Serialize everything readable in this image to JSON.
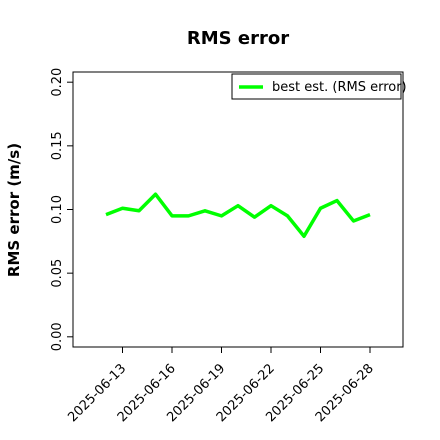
{
  "chart_data": {
    "type": "line",
    "title": "RMS error",
    "y_label": "RMS error (m/s)",
    "x": [
      "2025-06-12",
      "2025-06-13",
      "2025-06-14",
      "2025-06-15",
      "2025-06-16",
      "2025-06-17",
      "2025-06-18",
      "2025-06-19",
      "2025-06-20",
      "2025-06-21",
      "2025-06-22",
      "2025-06-23",
      "2025-06-24",
      "2025-06-25",
      "2025-06-26",
      "2025-06-27",
      "2025-06-28"
    ],
    "series": [
      {
        "name": "best est. (RMS error)",
        "color": "#00ff00",
        "values": [
          0.096,
          0.101,
          0.099,
          0.112,
          0.095,
          0.095,
          0.099,
          0.095,
          0.103,
          0.094,
          0.103,
          0.095,
          0.079,
          0.101,
          0.107,
          0.091,
          0.096
        ]
      }
    ],
    "xlim": [
      "2025-06-10",
      "2025-06-30"
    ],
    "xticks": [
      "2025-06-13",
      "2025-06-16",
      "2025-06-19",
      "2025-06-22",
      "2025-06-25",
      "2025-06-28"
    ],
    "highlight_tick": "2025-06-19",
    "highlight_color": "#228b22",
    "ylim": [
      -0.008,
      0.208
    ],
    "yticks": [
      {
        "value": 0,
        "label": "0.00"
      },
      {
        "value": 0.05,
        "label": "0.05"
      },
      {
        "value": 0.1,
        "label": "0.10"
      },
      {
        "value": 0.15,
        "label": "0.15"
      },
      {
        "value": 0.2,
        "label": "0.20"
      }
    ],
    "legend": "top-right",
    "grid": false
  }
}
